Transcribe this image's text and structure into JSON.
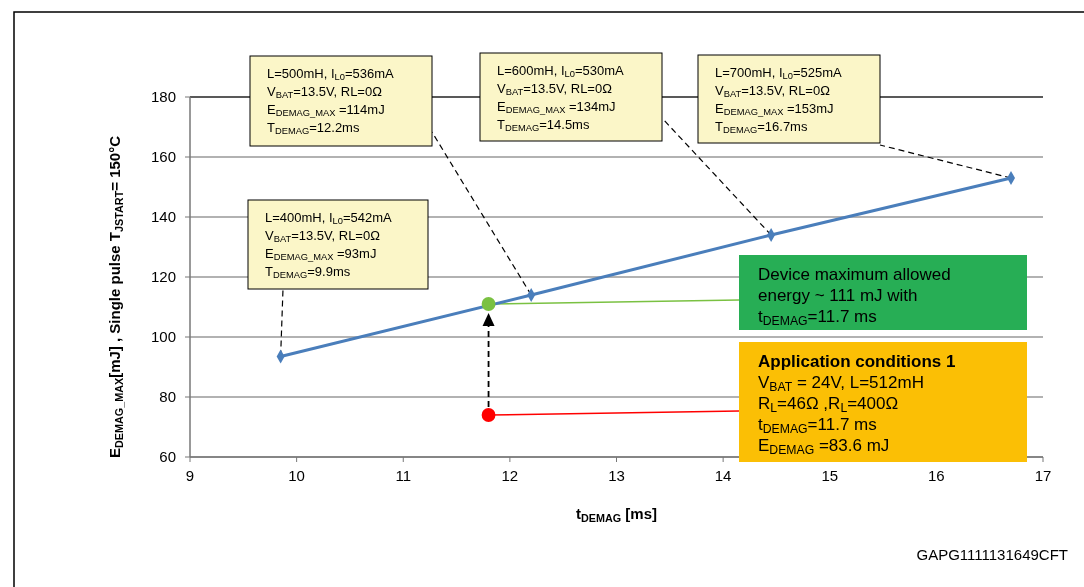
{
  "chart_data": {
    "type": "line",
    "xlabel": "t$_{DEMAG}$ [ms]",
    "ylabel": "E$_{DEMAG_MAX}$[mJ] , Single pulse T$_{JSTART}$= 150°C",
    "xlim": [
      9,
      17
    ],
    "xticks": [
      9,
      10,
      11,
      12,
      13,
      14,
      15,
      16,
      17
    ],
    "ylim": [
      60,
      180
    ],
    "yticks": [
      60,
      80,
      100,
      120,
      140,
      160,
      180
    ],
    "grid": "y",
    "marker": "diamond",
    "series": [
      {
        "x": [
          9.85,
          12.2,
          14.45,
          16.7
        ],
        "values": [
          93.5,
          114,
          134,
          153
        ],
        "color": "#4a7ebb"
      },
      {
        "type": "scatter",
        "marker": "circle",
        "x": [
          11.8
        ],
        "values": [
          111
        ],
        "color": "#7ac142"
      },
      {
        "type": "scatter",
        "marker": "circle",
        "x": [
          11.8
        ],
        "values": [
          74
        ],
        "color": "#ff0000"
      }
    ],
    "annotations": [
      "L=400mH, I$_{L0}$=542mA\nV$_{BAT}$=13.5V, RL=0Ω\nE$_{DEMAG_MAX}$ =93mJ\nT$_{DEMAG}$=9.9ms",
      "L=500mH, I$_{L0}$=536mA\nV$_{BAT}$=13.5V, RL=0Ω\nE$_{DEMAG_MAX}$ =114mJ\nT$_{DEMAG}$=12.2ms",
      "L=600mH, I$_{L0}$=530mA\nV$_{BAT}$=13.5V, RL=0Ω\nE$_{DEMAG_MAX}$ =134mJ\nT$_{DEMAG}$=14.5ms",
      "L=700mH, I$_{L0}$=525mA\nV$_{BAT}$=13.5V, RL=0Ω\nE$_{DEMAG_MAX}$ =153mJ\nT$_{DEMAG}$=16.7ms",
      {
        "text": "Device maximum allowed\nenergy ~ 111 mJ with\nt$_{DEMAG}$=11.7 ms",
        "x": 11.8,
        "y": 111
      },
      "Application conditions 1\nV$_{BAT}$ = 24V, L=512mH\nR$_{L}$=46Ω ,R$_{L}$=400Ω\nt$_{DEMAG}$=11.7 ms\nE$_{DEMAG}$ =83.6 mJ",
      "GAPG1111131649CFT"
    ]
  }
}
